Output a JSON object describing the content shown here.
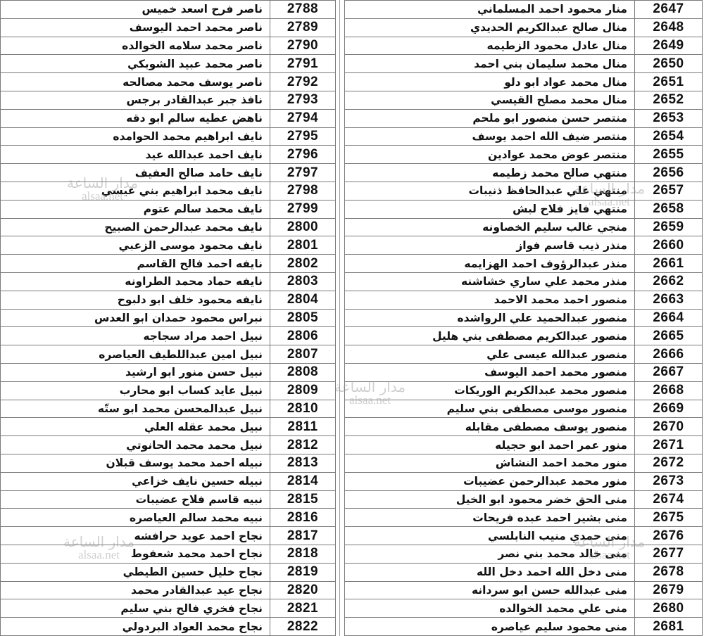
{
  "left_table": {
    "rows": [
      {
        "number": "2788",
        "name": "ناصر فرح اسعد خميس"
      },
      {
        "number": "2789",
        "name": "ناصر محمد احمد اليوسف"
      },
      {
        "number": "2790",
        "name": "ناصر محمد سلامه الخوالده"
      },
      {
        "number": "2791",
        "name": "ناصر محمد عبيد الشوبكي"
      },
      {
        "number": "2792",
        "name": "ناصر يوسف محمد مصالحه"
      },
      {
        "number": "2793",
        "name": "نافذ جبر عبدالقادر برجس"
      },
      {
        "number": "2794",
        "name": "ناهض عطيه سالم ابو دقه"
      },
      {
        "number": "2795",
        "name": "نايف ابراهيم محمد الحوامده"
      },
      {
        "number": "2796",
        "name": "نايف احمد عبدالله عيد"
      },
      {
        "number": "2797",
        "name": "نايف حامد صالح العفيف"
      },
      {
        "number": "2798",
        "name": "نايف محمد ابراهيم بني عيسي"
      },
      {
        "number": "2799",
        "name": "نايف محمد سالم عتوم"
      },
      {
        "number": "2800",
        "name": "نايف محمد عبدالرحمن الصبيح"
      },
      {
        "number": "2801",
        "name": "نايف محمود موسى الزعبي"
      },
      {
        "number": "2802",
        "name": "نايفه احمد فالح القاسم"
      },
      {
        "number": "2803",
        "name": "نايفه حماد محمد الطراونه"
      },
      {
        "number": "2804",
        "name": "نايفه محمود خلف ابو دلبوح"
      },
      {
        "number": "2805",
        "name": "نبراس محمود حمدان ابو العدس"
      },
      {
        "number": "2806",
        "name": "نبيل احمد مراد سجاجه"
      },
      {
        "number": "2807",
        "name": "نبيل امين عبداللطيف العياصره"
      },
      {
        "number": "2808",
        "name": "نبيل حسن منور ابو ارشيد"
      },
      {
        "number": "2809",
        "name": "نبيل عايد كساب ابو محارب"
      },
      {
        "number": "2810",
        "name": "نبيل عبدالمحسن محمد ابو ستّه"
      },
      {
        "number": "2811",
        "name": "نبيل محمد عقله العلي"
      },
      {
        "number": "2812",
        "name": "نبيل محمد محمد الحانوتي"
      },
      {
        "number": "2813",
        "name": "نبيله احمد محمد يوسف قبلان"
      },
      {
        "number": "2814",
        "name": "نبيله حسين نايف خزاعي"
      },
      {
        "number": "2815",
        "name": "نبيه قاسم فلاح عضيبات"
      },
      {
        "number": "2816",
        "name": "نبيه محمد سالم العياصره"
      },
      {
        "number": "2817",
        "name": "نجاح احمد عويد حرافشه"
      },
      {
        "number": "2818",
        "name": "نجاح احمد محمد شعفوط"
      },
      {
        "number": "2819",
        "name": "نجاح خليل حسين الطيطي"
      },
      {
        "number": "2820",
        "name": "نجاح عيد عبدالقادر محمد"
      },
      {
        "number": "2821",
        "name": "نجاح فخري فالح بني سليم"
      },
      {
        "number": "2822",
        "name": "نجاح محمد العواد البردولي"
      }
    ]
  },
  "right_table": {
    "rows": [
      {
        "number": "2647",
        "name": "منار محمود احمد المسلماني"
      },
      {
        "number": "2648",
        "name": "منال صالح عبدالكريم الحديدي"
      },
      {
        "number": "2649",
        "name": "منال عادل محمود الزطيمه"
      },
      {
        "number": "2650",
        "name": "منال محمد سليمان بني احمد"
      },
      {
        "number": "2651",
        "name": "منال محمد عواد ابو دلو"
      },
      {
        "number": "2652",
        "name": "منال محمد مصلح القيسي"
      },
      {
        "number": "2653",
        "name": "منتصر حسن منصور ابو ملحم"
      },
      {
        "number": "2654",
        "name": "منتصر ضيف الله احمد يوسف"
      },
      {
        "number": "2655",
        "name": "منتصر عوض محمد عوادين"
      },
      {
        "number": "2656",
        "name": "منتهي صالح محمد زطيمه"
      },
      {
        "number": "2657",
        "name": "منتهي علي عبدالحافظ ذنيبات"
      },
      {
        "number": "2658",
        "name": "منتهي فايز فلاح لبش"
      },
      {
        "number": "2659",
        "name": "منجي غالب سليم الخصاونه"
      },
      {
        "number": "2660",
        "name": "منذر ذيب قاسم فواز"
      },
      {
        "number": "2661",
        "name": "منذر عبدالرؤوف احمد الهزايمه"
      },
      {
        "number": "2662",
        "name": "منذر محمد علي ساري خشاشنه"
      },
      {
        "number": "2663",
        "name": "منصور احمد محمد الاحمد"
      },
      {
        "number": "2664",
        "name": "منصور عبدالحميد علي الرواشده"
      },
      {
        "number": "2665",
        "name": "منصور عبدالكريم مصطفى بني هليل"
      },
      {
        "number": "2666",
        "name": "منصور عبدالله عيسى علي"
      },
      {
        "number": "2667",
        "name": "منصور محمد احمد اليوسف"
      },
      {
        "number": "2668",
        "name": "منصور محمد عبدالكريم الوريكات"
      },
      {
        "number": "2669",
        "name": "منصور موسى مصطفى بني سليم"
      },
      {
        "number": "2670",
        "name": "منصور يوسف مصطفى مقابله"
      },
      {
        "number": "2671",
        "name": "منور عمر احمد ابو حجيله"
      },
      {
        "number": "2672",
        "name": "منور محمد احمد النشاش"
      },
      {
        "number": "2673",
        "name": "منور محمد عبدالرحمن عضيبات"
      },
      {
        "number": "2674",
        "name": "منى الحق خضر محمود ابو الخيل"
      },
      {
        "number": "2675",
        "name": "منى بشير احمد عبده فريحات"
      },
      {
        "number": "2676",
        "name": "منى حمدي منيب النابلسي"
      },
      {
        "number": "2677",
        "name": "منى خالد محمد بني نصر"
      },
      {
        "number": "2678",
        "name": "منى دخل الله احمد دخل الله"
      },
      {
        "number": "2679",
        "name": "منى عبدالله حسن ابو سردانه"
      },
      {
        "number": "2680",
        "name": "منى علي محمد الخوالده"
      },
      {
        "number": "2681",
        "name": "منى محمود سليم عياصره"
      }
    ]
  },
  "watermark": {
    "arabic": "مدار الساعة",
    "latin": "alsaa.net",
    "color": "#969696"
  }
}
